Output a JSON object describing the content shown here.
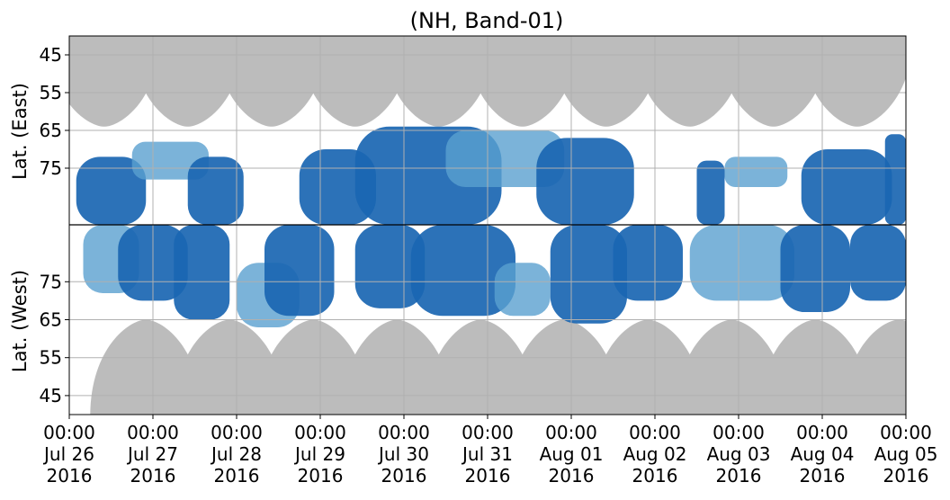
{
  "chart_data": {
    "type": "heatmap",
    "title": "(NH, Band-01)",
    "ylabel_east": "Lat. (East)",
    "ylabel_west": "Lat. (West)",
    "y_east_ticks": [
      45,
      55,
      65,
      75
    ],
    "y_west_ticks": [
      75,
      65,
      55,
      45
    ],
    "y_east_labels": [
      "45",
      "55",
      "65",
      "75"
    ],
    "y_west_labels": [
      "75",
      "65",
      "55",
      "45"
    ],
    "ylim_east": [
      40,
      90
    ],
    "ylim_west": [
      90,
      40
    ],
    "x_ticks": [
      {
        "time": "00:00",
        "date": "Jul 26",
        "year": "2016"
      },
      {
        "time": "00:00",
        "date": "Jul 27",
        "year": "2016"
      },
      {
        "time": "00:00",
        "date": "Jul 28",
        "year": "2016"
      },
      {
        "time": "00:00",
        "date": "Jul 29",
        "year": "2016"
      },
      {
        "time": "00:00",
        "date": "Jul 30",
        "year": "2016"
      },
      {
        "time": "00:00",
        "date": "Jul 31",
        "year": "2016"
      },
      {
        "time": "00:00",
        "date": "Aug 01",
        "year": "2016"
      },
      {
        "time": "00:00",
        "date": "Aug 02",
        "year": "2016"
      },
      {
        "time": "00:00",
        "date": "Aug 03",
        "year": "2016"
      },
      {
        "time": "00:00",
        "date": "Aug 04",
        "year": "2016"
      },
      {
        "time": "00:00",
        "date": "Aug 05",
        "year": "2016"
      }
    ],
    "xlim": [
      "2016-07-26 00:00",
      "2016-08-05 00:00"
    ],
    "grid": true,
    "colors": {
      "strong": "#1a66b2",
      "weak": "#5aa0d0",
      "coverage_gap": "#bcbcbc",
      "divider": "#000000",
      "grid": "#b0b0b0"
    },
    "gap_lobes_east": [
      {
        "center": "2016-07-26 10:00",
        "min_lat": 64
      },
      {
        "center": "2016-07-27 10:00",
        "min_lat": 64
      },
      {
        "center": "2016-07-28 10:00",
        "min_lat": 64
      },
      {
        "center": "2016-07-29 10:00",
        "min_lat": 64
      },
      {
        "center": "2016-07-30 10:00",
        "min_lat": 64
      },
      {
        "center": "2016-07-31 10:00",
        "min_lat": 64
      },
      {
        "center": "2016-08-01 10:00",
        "min_lat": 64
      },
      {
        "center": "2016-08-02 10:00",
        "min_lat": 64
      },
      {
        "center": "2016-08-03 10:00",
        "min_lat": 64
      },
      {
        "center": "2016-08-04 10:00",
        "min_lat": 64
      }
    ],
    "gap_lobes_west": [
      {
        "center": "2016-07-26 22:00",
        "min_lat": 65
      },
      {
        "center": "2016-07-27 22:00",
        "min_lat": 65
      },
      {
        "center": "2016-07-28 22:00",
        "min_lat": 65
      },
      {
        "center": "2016-07-29 22:00",
        "min_lat": 65
      },
      {
        "center": "2016-07-30 22:00",
        "min_lat": 65
      },
      {
        "center": "2016-07-31 22:00",
        "min_lat": 65
      },
      {
        "center": "2016-08-01 22:00",
        "min_lat": 65
      },
      {
        "center": "2016-08-02 22:00",
        "min_lat": 65
      },
      {
        "center": "2016-08-03 22:00",
        "min_lat": 65
      },
      {
        "center": "2016-08-04 22:00",
        "min_lat": 65
      }
    ],
    "echo_regions": [
      {
        "side": "east",
        "start": "2016-07-26 02:00",
        "end": "2016-07-26 22:00",
        "lat_min": 72,
        "lat_max": 90,
        "level": "strong"
      },
      {
        "side": "east",
        "start": "2016-07-26 18:00",
        "end": "2016-07-27 16:00",
        "lat_min": 68,
        "lat_max": 78,
        "level": "weak"
      },
      {
        "side": "east",
        "start": "2016-07-27 10:00",
        "end": "2016-07-28 02:00",
        "lat_min": 72,
        "lat_max": 90,
        "level": "strong"
      },
      {
        "side": "east",
        "start": "2016-07-28 18:00",
        "end": "2016-07-29 16:00",
        "lat_min": 70,
        "lat_max": 90,
        "level": "strong"
      },
      {
        "side": "east",
        "start": "2016-07-29 10:00",
        "end": "2016-07-31 04:00",
        "lat_min": 64,
        "lat_max": 90,
        "level": "strong"
      },
      {
        "side": "east",
        "start": "2016-07-30 12:00",
        "end": "2016-07-31 22:00",
        "lat_min": 65,
        "lat_max": 80,
        "level": "weak"
      },
      {
        "side": "east",
        "start": "2016-07-31 14:00",
        "end": "2016-08-01 18:00",
        "lat_min": 67,
        "lat_max": 90,
        "level": "strong"
      },
      {
        "side": "east",
        "start": "2016-08-02 12:00",
        "end": "2016-08-02 20:00",
        "lat_min": 73,
        "lat_max": 90,
        "level": "strong"
      },
      {
        "side": "east",
        "start": "2016-08-02 20:00",
        "end": "2016-08-03 14:00",
        "lat_min": 72,
        "lat_max": 80,
        "level": "weak"
      },
      {
        "side": "east",
        "start": "2016-08-03 18:00",
        "end": "2016-08-04 20:00",
        "lat_min": 70,
        "lat_max": 90,
        "level": "strong"
      },
      {
        "side": "east",
        "start": "2016-08-04 18:00",
        "end": "2016-08-05 00:00",
        "lat_min": 66,
        "lat_max": 90,
        "level": "strong"
      },
      {
        "side": "west",
        "start": "2016-07-26 04:00",
        "end": "2016-07-26 20:00",
        "lat_min": 72,
        "lat_max": 90,
        "level": "weak"
      },
      {
        "side": "west",
        "start": "2016-07-26 14:00",
        "end": "2016-07-27 10:00",
        "lat_min": 70,
        "lat_max": 90,
        "level": "strong"
      },
      {
        "side": "west",
        "start": "2016-07-27 06:00",
        "end": "2016-07-27 22:00",
        "lat_min": 65,
        "lat_max": 90,
        "level": "strong"
      },
      {
        "side": "west",
        "start": "2016-07-28 00:00",
        "end": "2016-07-28 18:00",
        "lat_min": 63,
        "lat_max": 80,
        "level": "weak"
      },
      {
        "side": "west",
        "start": "2016-07-28 08:00",
        "end": "2016-07-29 04:00",
        "lat_min": 66,
        "lat_max": 90,
        "level": "strong"
      },
      {
        "side": "west",
        "start": "2016-07-29 10:00",
        "end": "2016-07-30 06:00",
        "lat_min": 68,
        "lat_max": 90,
        "level": "strong"
      },
      {
        "side": "west",
        "start": "2016-07-30 02:00",
        "end": "2016-07-31 08:00",
        "lat_min": 66,
        "lat_max": 90,
        "level": "strong"
      },
      {
        "side": "west",
        "start": "2016-07-31 02:00",
        "end": "2016-07-31 18:00",
        "lat_min": 66,
        "lat_max": 80,
        "level": "weak"
      },
      {
        "side": "west",
        "start": "2016-07-31 18:00",
        "end": "2016-08-01 16:00",
        "lat_min": 64,
        "lat_max": 90,
        "level": "strong"
      },
      {
        "side": "west",
        "start": "2016-08-01 12:00",
        "end": "2016-08-02 08:00",
        "lat_min": 70,
        "lat_max": 90,
        "level": "strong"
      },
      {
        "side": "west",
        "start": "2016-08-02 10:00",
        "end": "2016-08-03 16:00",
        "lat_min": 70,
        "lat_max": 90,
        "level": "weak"
      },
      {
        "side": "west",
        "start": "2016-08-03 12:00",
        "end": "2016-08-04 08:00",
        "lat_min": 67,
        "lat_max": 90,
        "level": "strong"
      },
      {
        "side": "west",
        "start": "2016-08-04 08:00",
        "end": "2016-08-05 00:00",
        "lat_min": 70,
        "lat_max": 90,
        "level": "strong"
      }
    ]
  }
}
